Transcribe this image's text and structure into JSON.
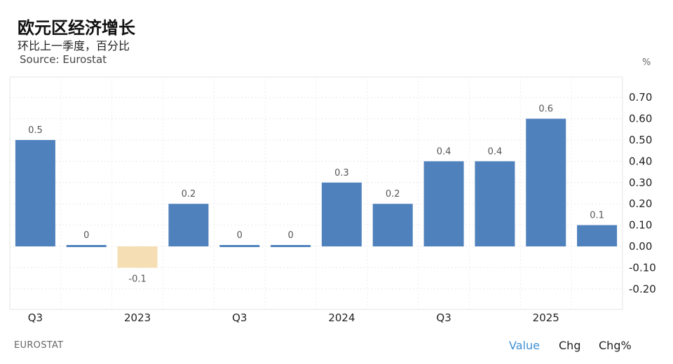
{
  "header": {
    "title": "欧元区经济增长",
    "subtitle": "环比上一季度，百分比",
    "source": "Source: Eurostat"
  },
  "footer": {
    "brand": "EUROSTAT",
    "tabs": [
      {
        "label": "Value",
        "active": true
      },
      {
        "label": "Chg",
        "active": false
      },
      {
        "label": "Chg%",
        "active": false
      }
    ]
  },
  "colors": {
    "positive": "#4f81bd",
    "negative": "#f5deb3",
    "active_tab": "#3d8fd6"
  },
  "chart_data": {
    "type": "bar",
    "unit": "%",
    "values": [
      0.5,
      0.0,
      -0.1,
      0.2,
      0.0,
      0.0,
      0.3,
      0.2,
      0.4,
      0.4,
      0.6,
      0.1
    ],
    "data_labels": [
      "0.5",
      "0",
      "-0.1",
      "0.2",
      "0",
      "0",
      "0.3",
      "0.2",
      "0.4",
      "0.4",
      "0.6",
      "0.1"
    ],
    "x_tick_labels": [
      {
        "index": 0,
        "label": "Q3"
      },
      {
        "index": 2,
        "label": "2023"
      },
      {
        "index": 4,
        "label": "Q3"
      },
      {
        "index": 6,
        "label": "2024"
      },
      {
        "index": 8,
        "label": "Q3"
      },
      {
        "index": 10,
        "label": "2025"
      }
    ],
    "y_ticks": [
      0.7,
      0.6,
      0.5,
      0.4,
      0.3,
      0.2,
      0.1,
      0.0,
      -0.1,
      -0.2
    ],
    "y_tick_labels": [
      "0.70",
      "0.60",
      "0.50",
      "0.40",
      "0.30",
      "0.20",
      "0.10",
      "0.00",
      "-0.10",
      "-0.20"
    ],
    "ylim": [
      -0.3,
      0.8
    ],
    "grid": true,
    "y_axis_position": "right"
  }
}
